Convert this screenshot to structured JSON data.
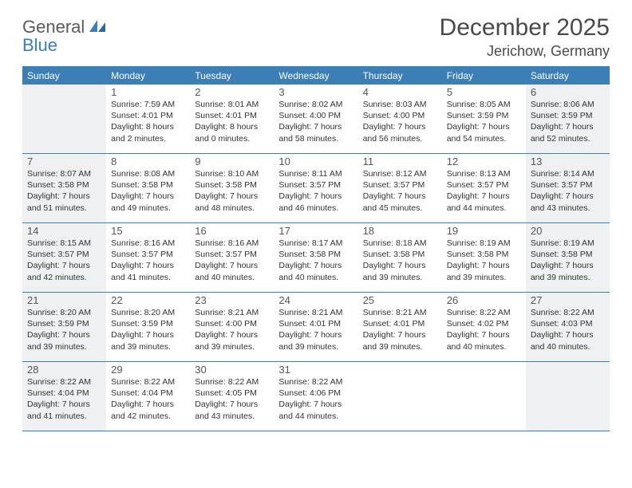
{
  "logo": {
    "line1": "General",
    "line2": "Blue"
  },
  "title": "December 2025",
  "location": "Jerichow, Germany",
  "colors": {
    "brand_blue": "#3b7fb6",
    "shade_bg": "#eef0f1",
    "text": "#333333",
    "title_text": "#4a4a4a"
  },
  "dow": [
    "Sunday",
    "Monday",
    "Tuesday",
    "Wednesday",
    "Thursday",
    "Friday",
    "Saturday"
  ],
  "weeks": [
    [
      {
        "n": "",
        "sunrise": "",
        "sunset": "",
        "daylight": "",
        "shade": true
      },
      {
        "n": "1",
        "sunrise": "7:59 AM",
        "sunset": "4:01 PM",
        "daylight": "8 hours and 2 minutes."
      },
      {
        "n": "2",
        "sunrise": "8:01 AM",
        "sunset": "4:01 PM",
        "daylight": "8 hours and 0 minutes."
      },
      {
        "n": "3",
        "sunrise": "8:02 AM",
        "sunset": "4:00 PM",
        "daylight": "7 hours and 58 minutes."
      },
      {
        "n": "4",
        "sunrise": "8:03 AM",
        "sunset": "4:00 PM",
        "daylight": "7 hours and 56 minutes."
      },
      {
        "n": "5",
        "sunrise": "8:05 AM",
        "sunset": "3:59 PM",
        "daylight": "7 hours and 54 minutes."
      },
      {
        "n": "6",
        "sunrise": "8:06 AM",
        "sunset": "3:59 PM",
        "daylight": "7 hours and 52 minutes.",
        "shade": true
      }
    ],
    [
      {
        "n": "7",
        "sunrise": "8:07 AM",
        "sunset": "3:58 PM",
        "daylight": "7 hours and 51 minutes.",
        "shade": true
      },
      {
        "n": "8",
        "sunrise": "8:08 AM",
        "sunset": "3:58 PM",
        "daylight": "7 hours and 49 minutes."
      },
      {
        "n": "9",
        "sunrise": "8:10 AM",
        "sunset": "3:58 PM",
        "daylight": "7 hours and 48 minutes."
      },
      {
        "n": "10",
        "sunrise": "8:11 AM",
        "sunset": "3:57 PM",
        "daylight": "7 hours and 46 minutes."
      },
      {
        "n": "11",
        "sunrise": "8:12 AM",
        "sunset": "3:57 PM",
        "daylight": "7 hours and 45 minutes."
      },
      {
        "n": "12",
        "sunrise": "8:13 AM",
        "sunset": "3:57 PM",
        "daylight": "7 hours and 44 minutes."
      },
      {
        "n": "13",
        "sunrise": "8:14 AM",
        "sunset": "3:57 PM",
        "daylight": "7 hours and 43 minutes.",
        "shade": true
      }
    ],
    [
      {
        "n": "14",
        "sunrise": "8:15 AM",
        "sunset": "3:57 PM",
        "daylight": "7 hours and 42 minutes.",
        "shade": true
      },
      {
        "n": "15",
        "sunrise": "8:16 AM",
        "sunset": "3:57 PM",
        "daylight": "7 hours and 41 minutes."
      },
      {
        "n": "16",
        "sunrise": "8:16 AM",
        "sunset": "3:57 PM",
        "daylight": "7 hours and 40 minutes."
      },
      {
        "n": "17",
        "sunrise": "8:17 AM",
        "sunset": "3:58 PM",
        "daylight": "7 hours and 40 minutes."
      },
      {
        "n": "18",
        "sunrise": "8:18 AM",
        "sunset": "3:58 PM",
        "daylight": "7 hours and 39 minutes."
      },
      {
        "n": "19",
        "sunrise": "8:19 AM",
        "sunset": "3:58 PM",
        "daylight": "7 hours and 39 minutes."
      },
      {
        "n": "20",
        "sunrise": "8:19 AM",
        "sunset": "3:58 PM",
        "daylight": "7 hours and 39 minutes.",
        "shade": true
      }
    ],
    [
      {
        "n": "21",
        "sunrise": "8:20 AM",
        "sunset": "3:59 PM",
        "daylight": "7 hours and 39 minutes.",
        "shade": true
      },
      {
        "n": "22",
        "sunrise": "8:20 AM",
        "sunset": "3:59 PM",
        "daylight": "7 hours and 39 minutes."
      },
      {
        "n": "23",
        "sunrise": "8:21 AM",
        "sunset": "4:00 PM",
        "daylight": "7 hours and 39 minutes."
      },
      {
        "n": "24",
        "sunrise": "8:21 AM",
        "sunset": "4:01 PM",
        "daylight": "7 hours and 39 minutes."
      },
      {
        "n": "25",
        "sunrise": "8:21 AM",
        "sunset": "4:01 PM",
        "daylight": "7 hours and 39 minutes."
      },
      {
        "n": "26",
        "sunrise": "8:22 AM",
        "sunset": "4:02 PM",
        "daylight": "7 hours and 40 minutes."
      },
      {
        "n": "27",
        "sunrise": "8:22 AM",
        "sunset": "4:03 PM",
        "daylight": "7 hours and 40 minutes.",
        "shade": true
      }
    ],
    [
      {
        "n": "28",
        "sunrise": "8:22 AM",
        "sunset": "4:04 PM",
        "daylight": "7 hours and 41 minutes.",
        "shade": true
      },
      {
        "n": "29",
        "sunrise": "8:22 AM",
        "sunset": "4:04 PM",
        "daylight": "7 hours and 42 minutes."
      },
      {
        "n": "30",
        "sunrise": "8:22 AM",
        "sunset": "4:05 PM",
        "daylight": "7 hours and 43 minutes."
      },
      {
        "n": "31",
        "sunrise": "8:22 AM",
        "sunset": "4:06 PM",
        "daylight": "7 hours and 44 minutes."
      },
      {
        "n": "",
        "sunrise": "",
        "sunset": "",
        "daylight": ""
      },
      {
        "n": "",
        "sunrise": "",
        "sunset": "",
        "daylight": ""
      },
      {
        "n": "",
        "sunrise": "",
        "sunset": "",
        "daylight": "",
        "shade": true
      }
    ]
  ]
}
